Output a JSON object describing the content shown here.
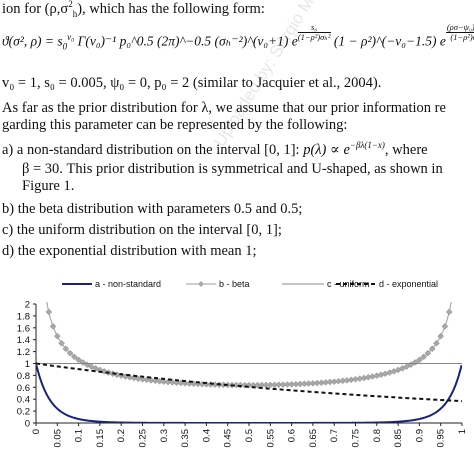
{
  "text": {
    "line1_prefix": "ion for (ρ,σ",
    "line1_suffix": "), which has the following form:",
    "formula_lhs": "ϑ(σ², ρ) = s",
    "formula_body": "Γ(v₀)⁻¹ p₀^0.5 (2π)^−0.5 (σₕ⁻²)^(v₀+1) e",
    "formula_exp1_num": "s₀",
    "formula_exp1_den": "(1−ρ²)σₕ²",
    "formula_mid": "(1 − ρ²)^(−v₀−1.5) e",
    "formula_exp2_num": "(ρσ−ψ₀)² p₀",
    "formula_exp2_den": "(1−ρ²)σₕ²",
    "formula_end": ",",
    "params_line": "v₀ = 1, s₀ = 0.005, ψ₀ = 0, p₀ = 2 (similar to Jacquier et al., 2004).",
    "para_line1": "As far as the prior distribution for λ, we assume that our prior information re",
    "para_line2": "garding this parameter can be represented by the following:",
    "item_a_prefix": "a)  a non-standard distribution on the interval [0, 1]:",
    "item_a_formula": "p(λ) ∝ e",
    "item_a_exponent": "−βλ(1−x)",
    "item_a_suffix": ", where",
    "item_a_line2": "β = 30. This prior distribution is symmetrical and U-shaped, as shown in",
    "item_a_line3": "Figure 1.",
    "item_b": "b)  the beta distribution with parameters 0.5 and 0.5;",
    "item_c": "c)  the uniform distribution on the interval [0, 1];",
    "item_d": "d)  the exponential distribution with mean 1;",
    "watermark": "Uploaded by: Sérgio Mendes Ribeiro"
  },
  "chart_data": {
    "type": "line",
    "series": [
      {
        "name": "a - non-standard",
        "color": "#1a237e",
        "style": "solid",
        "formula": "exp(-30*x*(1-x))"
      },
      {
        "name": "b - beta",
        "color": "#9e9e9e",
        "style": "diamond-markers",
        "formula": "1/(pi*sqrt(x*(1-x)))"
      },
      {
        "name": "c - uniform",
        "color": "#888888",
        "style": "thin-solid",
        "formula": "1"
      },
      {
        "name": "d - exponential",
        "color": "#111111",
        "style": "dashed",
        "formula": "exp(-x)"
      }
    ],
    "y_ticks": [
      "0",
      "0.2",
      "0.4",
      "0.6",
      "0.8",
      "1",
      "1.2",
      "1.4",
      "1.6",
      "1.8",
      "2"
    ],
    "x_ticks": [
      "0",
      "0.05",
      "0.1",
      "0.15",
      "0.2",
      "0.25",
      "0.3",
      "0.35",
      "0.4",
      "0.45",
      "0.5",
      "0.55",
      "0.6",
      "0.65",
      "0.7",
      "0.75",
      "0.8",
      "0.85",
      "0.9",
      "0.95",
      "1"
    ],
    "xlim": [
      0,
      1
    ],
    "ylim": [
      0,
      2
    ],
    "legend_position": "top",
    "grid": false
  }
}
